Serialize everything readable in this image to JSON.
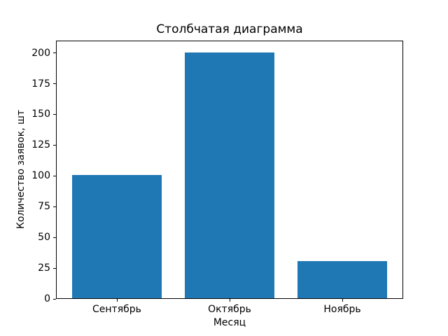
{
  "chart_data": {
    "type": "bar",
    "title": "Столбчатая диаграмма",
    "xlabel": "Месяц",
    "ylabel": "Количество заявок, шт",
    "categories": [
      "Сентябрь",
      "Октябрь",
      "Ноябрь"
    ],
    "values": [
      100,
      200,
      30
    ],
    "yticks": [
      0,
      25,
      50,
      75,
      100,
      125,
      150,
      175,
      200
    ],
    "ylim": [
      0,
      210
    ],
    "bar_color": "#1f77b4",
    "background_color": "#ffffff",
    "text_color": "#000000",
    "grid": false
  }
}
